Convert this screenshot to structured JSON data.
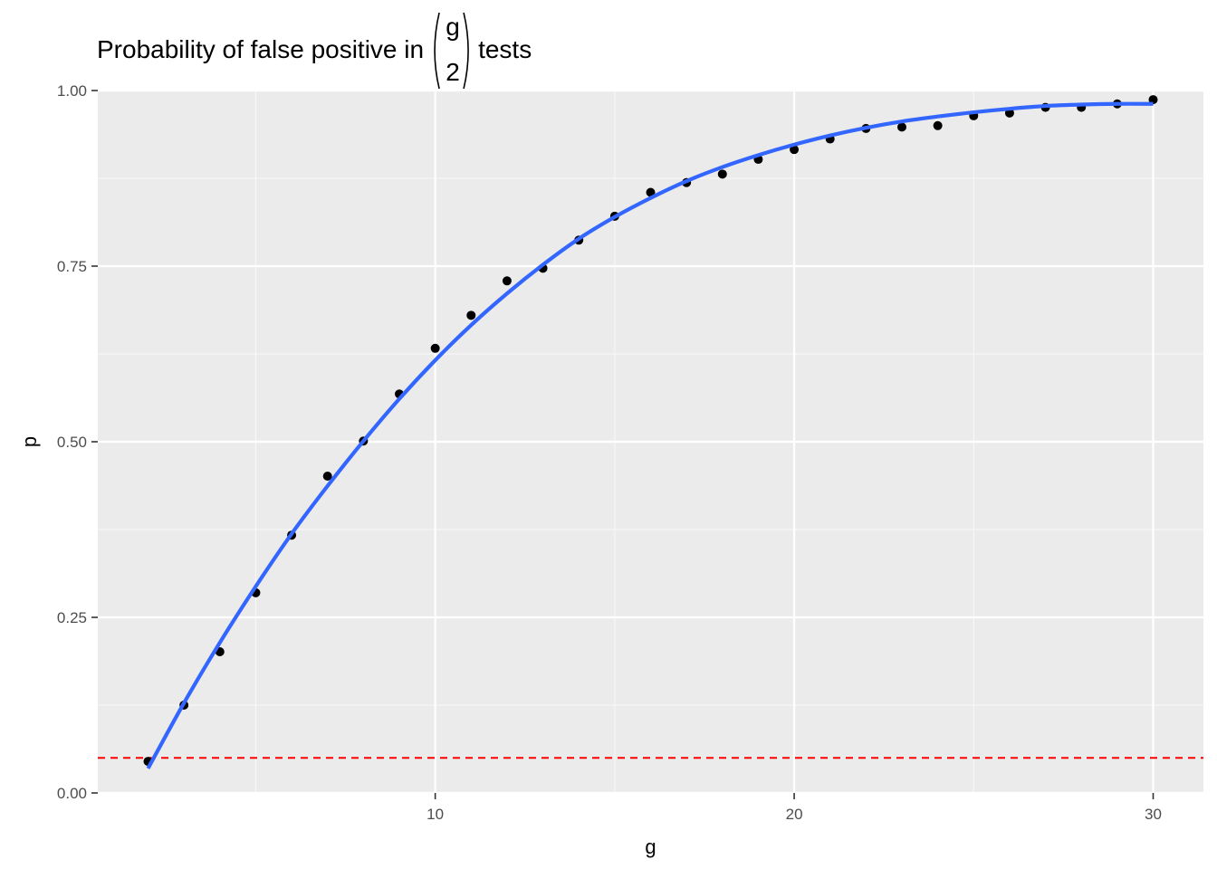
{
  "chart_data": {
    "type": "scatter",
    "title": {
      "prefix": "Probability of false positive in",
      "binom_top": "g",
      "binom_bottom": "2",
      "suffix": "tests"
    },
    "xlabel": "g",
    "ylabel": "p",
    "xlim": [
      0.6,
      31.4
    ],
    "ylim": [
      0,
      1
    ],
    "x_ticks": [
      10,
      20,
      30
    ],
    "x_tick_labels": [
      "10",
      "20",
      "30"
    ],
    "y_ticks": [
      0,
      0.25,
      0.5,
      0.75,
      1
    ],
    "y_tick_labels": [
      "0.00",
      "0.25",
      "0.50",
      "0.75",
      "1.00"
    ],
    "x_minor_ticks": [
      5,
      15,
      25
    ],
    "y_minor_ticks": [
      0.125,
      0.375,
      0.625,
      0.875
    ],
    "grid": true,
    "legend": "none",
    "series": [
      {
        "kind": "points",
        "color": "#000000",
        "x": [
          2,
          3,
          4,
          5,
          6,
          7,
          8,
          9,
          10,
          11,
          12,
          13,
          14,
          15,
          16,
          17,
          18,
          19,
          20,
          21,
          22,
          23,
          24,
          25,
          26,
          27,
          28,
          29,
          30
        ],
        "y": [
          0.045,
          0.125,
          0.201,
          0.285,
          0.367,
          0.451,
          0.501,
          0.568,
          0.633,
          0.68,
          0.729,
          0.747,
          0.787,
          0.821,
          0.855,
          0.869,
          0.881,
          0.902,
          0.916,
          0.931,
          0.946,
          0.948,
          0.95,
          0.964,
          0.968,
          0.976,
          0.976,
          0.981,
          0.987
        ]
      },
      {
        "kind": "smooth",
        "color": "#3366FF",
        "x": [
          2,
          3,
          4,
          5,
          6,
          7,
          8,
          9,
          10,
          11,
          12,
          13,
          14,
          15,
          16,
          17,
          18,
          19,
          20,
          21,
          22,
          23,
          24,
          25,
          26,
          27,
          28,
          29,
          30
        ],
        "y": [
          0.035,
          0.128,
          0.214,
          0.294,
          0.369,
          0.437,
          0.501,
          0.561,
          0.616,
          0.666,
          0.711,
          0.752,
          0.789,
          0.82,
          0.847,
          0.871,
          0.891,
          0.908,
          0.923,
          0.936,
          0.947,
          0.956,
          0.963,
          0.969,
          0.974,
          0.978,
          0.98,
          0.981,
          0.981
        ]
      }
    ],
    "hline": {
      "y": 0.05,
      "color": "#FF0000",
      "style": "dashed"
    }
  }
}
